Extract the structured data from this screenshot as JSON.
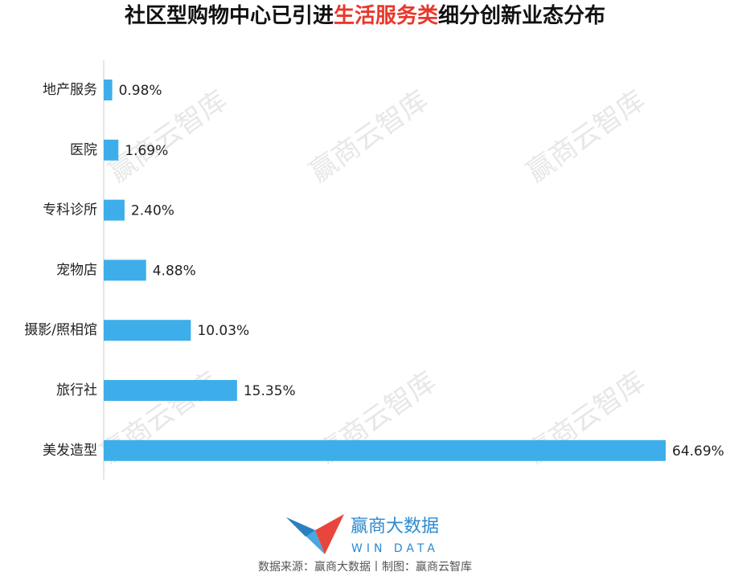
{
  "chart_data": {
    "type": "hbar",
    "title": [
      "社区型购物中心已引进",
      "生活服务类",
      "细分创新业态分布"
    ],
    "title_colors": [
      "#111111",
      "#e8382b",
      "#111111"
    ],
    "categories": [
      "地产服务",
      "医院",
      "专科诊所",
      "宠物店",
      "摄影/照相馆",
      "旅行社",
      "美发造型"
    ],
    "values": [
      0.98,
      1.69,
      2.4,
      4.88,
      10.03,
      15.35,
      64.69
    ],
    "value_labels": [
      "0.98%",
      "1.69%",
      "2.40%",
      "4.88%",
      "10.03%",
      "15.35%",
      "64.69%"
    ],
    "color": "#3eaeea",
    "watermark": "赢商云智库",
    "logo_text": "赢商大数据",
    "logo_subtext": "WIN DATA",
    "source": "数据来源：赢商大数据丨制图：赢商云智库"
  }
}
